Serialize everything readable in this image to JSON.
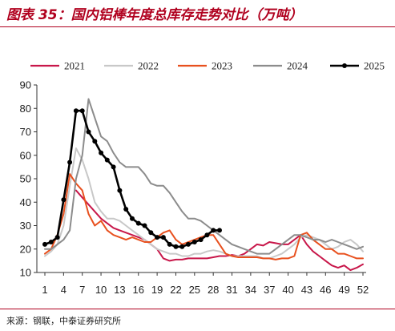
{
  "header": {
    "title": "图表 35：国内铝棒年度总库存走势对比（万吨）"
  },
  "footer": {
    "source": "来源：钢联，中泰证券研究所"
  },
  "colors": {
    "s2021": "#c8174a",
    "s2022": "#c8c8c8",
    "s2023": "#e8501e",
    "s2024": "#8c8c8c",
    "s2025": "#000000",
    "title": "#b0001e"
  },
  "chart_data": {
    "type": "line",
    "title": "",
    "xlabel": "",
    "ylabel": "",
    "xlim": [
      1,
      52
    ],
    "ylim": [
      10,
      90
    ],
    "xticks": [
      1,
      4,
      7,
      10,
      13,
      16,
      19,
      22,
      25,
      28,
      31,
      34,
      37,
      40,
      43,
      46,
      49,
      52
    ],
    "yticks": [
      10,
      20,
      30,
      40,
      50,
      60,
      70,
      80,
      90
    ],
    "grid": false,
    "legend": "top",
    "series": [
      {
        "name": "2021",
        "x": [
          6,
          7,
          8,
          9,
          10,
          11,
          12,
          13,
          14,
          15,
          16,
          17,
          18,
          19,
          20,
          21,
          22,
          23,
          24,
          25,
          26,
          27,
          28,
          29,
          30,
          31,
          32,
          33,
          34,
          35,
          36,
          37,
          38,
          39,
          40,
          41,
          42,
          43,
          44,
          45,
          46,
          47,
          48,
          49,
          50,
          51,
          52
        ],
        "values": [
          45,
          42,
          39,
          36,
          33,
          31,
          29,
          28,
          27,
          26,
          25,
          24,
          22,
          20,
          16,
          15,
          15.5,
          15.5,
          16,
          16,
          16,
          16,
          16.5,
          17,
          17,
          17.5,
          17,
          18,
          20,
          22,
          21.5,
          23,
          22.5,
          22,
          22,
          24,
          26,
          22,
          19,
          17,
          15,
          13,
          12,
          13,
          11,
          12,
          13.5
        ]
      },
      {
        "name": "2022",
        "x": [
          1,
          2,
          3,
          4,
          5,
          6,
          7,
          8,
          9,
          10,
          11,
          12,
          13,
          14,
          15,
          16,
          17,
          18,
          19,
          20,
          21,
          22,
          23,
          24,
          25,
          26,
          27,
          28,
          29,
          30,
          31,
          32,
          33,
          34,
          35,
          36,
          37,
          38,
          39,
          40,
          41,
          42,
          43,
          44,
          45,
          46,
          47,
          48,
          49,
          50,
          51,
          52
        ],
        "values": [
          17,
          19,
          22,
          30,
          47,
          63,
          58,
          50,
          40,
          36,
          33,
          33,
          32,
          30,
          28,
          26,
          24,
          22,
          20,
          19,
          18,
          18,
          17,
          17,
          18,
          18,
          19,
          19.5,
          19,
          18,
          17,
          17,
          17,
          17,
          17,
          16,
          16,
          17,
          18,
          20,
          22,
          25,
          26,
          25,
          24,
          22,
          20,
          21,
          23,
          24,
          22,
          19
        ]
      },
      {
        "name": "2023",
        "x": [
          1,
          2,
          3,
          4,
          5,
          6,
          7,
          8,
          9,
          10,
          11,
          12,
          13,
          14,
          15,
          16,
          17,
          18,
          19,
          20,
          21,
          22,
          23,
          24,
          25,
          26,
          27,
          28,
          29,
          30,
          31,
          32,
          33,
          34,
          35,
          36,
          37,
          38,
          39,
          40,
          41,
          42,
          43,
          44,
          45,
          46,
          47,
          48,
          49,
          50,
          51,
          52
        ],
        "values": [
          18,
          20,
          26,
          35,
          52,
          48,
          45,
          35,
          30,
          32,
          28,
          26,
          25,
          24,
          25,
          24,
          23,
          23,
          25,
          27,
          28,
          24,
          22,
          23,
          24,
          25,
          26,
          26,
          22,
          18,
          17,
          16.5,
          16.5,
          16.5,
          16.5,
          16,
          16,
          15.5,
          16,
          16,
          17,
          26,
          27,
          24,
          22,
          20,
          20,
          18,
          18,
          17,
          16,
          16
        ]
      },
      {
        "name": "2024",
        "x": [
          1,
          2,
          3,
          4,
          5,
          6,
          7,
          8,
          9,
          10,
          11,
          12,
          13,
          14,
          15,
          16,
          17,
          18,
          19,
          20,
          21,
          22,
          23,
          24,
          25,
          26,
          27,
          28,
          29,
          30,
          31,
          32,
          33,
          34,
          35,
          36,
          37,
          38,
          39,
          40,
          41,
          42,
          43,
          44,
          45,
          46,
          47,
          48,
          49,
          50,
          51,
          52
        ],
        "values": [
          20,
          20,
          22,
          24,
          28,
          50,
          60,
          84,
          76,
          68,
          66,
          61,
          57,
          55,
          55,
          55,
          52,
          48,
          47,
          47,
          44,
          40,
          36,
          33,
          33,
          32,
          30,
          28,
          26,
          24,
          22,
          21,
          20,
          19,
          18,
          18,
          18,
          20,
          22,
          24,
          26,
          26,
          25,
          24,
          24,
          23,
          24,
          23,
          22,
          21,
          20,
          21
        ]
      },
      {
        "name": "2025",
        "x": [
          1,
          2,
          3,
          4,
          5,
          6,
          7,
          8,
          9,
          10,
          11,
          12,
          13,
          14,
          15,
          16,
          17,
          18,
          19,
          20,
          21,
          22,
          23,
          24,
          25,
          26,
          27,
          28,
          29
        ],
        "values": [
          22,
          23,
          25,
          41,
          57,
          79,
          79,
          70,
          66,
          61,
          58,
          55,
          45,
          37,
          33,
          31,
          30,
          27,
          25,
          25,
          22,
          21,
          21,
          22,
          23,
          24,
          26,
          28,
          28
        ]
      }
    ]
  }
}
